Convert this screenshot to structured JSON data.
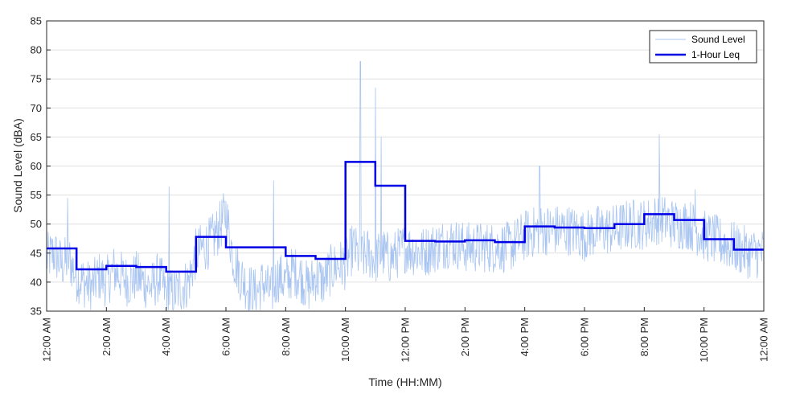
{
  "chart_data": {
    "type": "line",
    "xlabel": "Time (HH:MM)",
    "ylabel": "Sound Level (dBA)",
    "ylim": [
      35,
      85
    ],
    "yticks": [
      35,
      40,
      45,
      50,
      55,
      60,
      65,
      70,
      75,
      80,
      85
    ],
    "xlim_hours": [
      0,
      24
    ],
    "xtick_hours": [
      0,
      2,
      4,
      6,
      8,
      10,
      12,
      14,
      16,
      18,
      20,
      22,
      24
    ],
    "xtick_labels": [
      "12:00 AM",
      "2:00 AM",
      "4:00 AM",
      "6:00 AM",
      "8:00 AM",
      "10:00 AM",
      "12:00 PM",
      "2:00 PM",
      "4:00 PM",
      "6:00 PM",
      "8:00 PM",
      "10:00 PM",
      "12:00 AM"
    ],
    "grid": true,
    "legend_position": "top-right",
    "series": [
      {
        "name": "Sound Level",
        "color": "#a8c4f0",
        "style": "thin-noisy-line",
        "x_hours": [
          0,
          0.25,
          0.5,
          0.75,
          1,
          1.25,
          1.5,
          1.75,
          2,
          2.25,
          2.5,
          2.75,
          3,
          3.25,
          3.5,
          3.75,
          4,
          4.25,
          4.5,
          4.75,
          5,
          5.25,
          5.5,
          5.75,
          6,
          6.25,
          6.5,
          6.75,
          7,
          7.25,
          7.5,
          7.75,
          8,
          8.25,
          8.5,
          8.75,
          9,
          9.25,
          9.5,
          9.75,
          10,
          10.25,
          10.5,
          10.75,
          11,
          11.25,
          11.5,
          11.75,
          12,
          12.5,
          13,
          13.5,
          14,
          14.5,
          15,
          15.5,
          16,
          16.5,
          17,
          17.5,
          18,
          18.5,
          19,
          19.5,
          20,
          20.5,
          21,
          21.5,
          22,
          22.5,
          23,
          23.5,
          24
        ],
        "values": [
          44,
          45,
          43,
          44,
          41,
          40,
          39,
          41,
          40,
          42,
          41,
          40,
          41,
          40,
          39,
          41,
          38,
          38,
          39,
          40,
          45,
          46,
          47,
          49,
          52,
          44,
          41,
          39,
          38,
          40,
          38,
          41,
          40,
          42,
          41,
          39,
          41,
          40,
          42,
          43,
          43,
          46,
          44,
          45,
          44,
          45,
          44,
          45,
          46,
          45,
          46,
          47,
          46,
          46,
          46,
          46,
          48,
          49,
          49,
          49,
          48,
          49,
          49,
          50,
          50,
          51,
          50,
          50,
          48,
          47,
          46,
          45,
          45
        ],
        "peaks_hours": [
          0.7,
          4.1,
          7.6,
          10.5,
          11.0,
          11.2,
          16.5,
          20.5,
          21.7
        ],
        "peak_values": [
          54.5,
          56.5,
          57.5,
          78,
          73.5,
          65,
          60,
          65.5,
          56
        ]
      },
      {
        "name": "1-Hour Leq",
        "color": "#0000e6",
        "style": "step",
        "hour_starts": [
          0,
          1,
          2,
          3,
          4,
          5,
          6,
          7,
          8,
          9,
          10,
          11,
          12,
          13,
          14,
          15,
          16,
          17,
          18,
          19,
          20,
          21,
          22,
          23
        ],
        "values": [
          45.8,
          42.2,
          42.8,
          42.6,
          41.8,
          47.8,
          46.0,
          46.0,
          44.5,
          44.0,
          60.7,
          56.6,
          47.1,
          47.0,
          47.2,
          46.9,
          49.6,
          49.4,
          49.3,
          50.0,
          51.7,
          50.7,
          47.4,
          45.6
        ]
      }
    ]
  }
}
